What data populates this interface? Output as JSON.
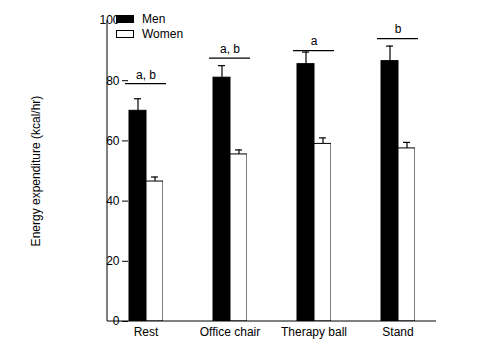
{
  "chart_data": {
    "type": "bar",
    "y_label": "Energy expenditure (kcal/hr)",
    "categories": [
      "Rest",
      "Office chair",
      "Therapy ball",
      "Stand"
    ],
    "series": [
      {
        "name": "Men",
        "color": "#000000",
        "values": [
          70,
          81,
          85.5,
          86.5
        ],
        "errors": [
          4,
          4,
          4,
          5
        ]
      },
      {
        "name": "Women",
        "color": "#ffffff",
        "values": [
          46.5,
          55.5,
          59,
          57.5
        ],
        "errors": [
          1.5,
          1.5,
          2,
          2
        ]
      }
    ],
    "annotations": [
      {
        "category": "Rest",
        "text": "a, b",
        "y": 79
      },
      {
        "category": "Office chair",
        "text": "a, b",
        "y": 87.5
      },
      {
        "category": "Therapy ball",
        "text": "a",
        "y": 90
      },
      {
        "category": "Stand",
        "text": "b",
        "y": 94
      }
    ],
    "ylim": [
      0,
      100
    ],
    "yticks": [
      0,
      20,
      40,
      60,
      80,
      100
    ],
    "grid": false,
    "legend": "upper left"
  }
}
